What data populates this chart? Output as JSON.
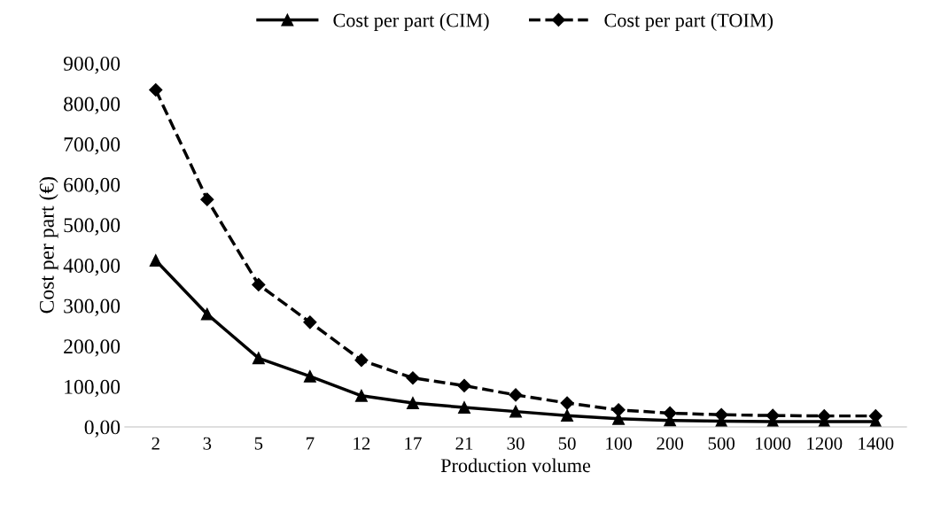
{
  "chart_data": {
    "type": "line",
    "xlabel": "Production volume",
    "ylabel": "Cost per part (€)",
    "categories": [
      "2",
      "3",
      "5",
      "7",
      "12",
      "17",
      "21",
      "30",
      "50",
      "100",
      "200",
      "500",
      "1000",
      "1200",
      "1400"
    ],
    "series": [
      {
        "name": "Cost per part (CIM)",
        "color": "#000000",
        "marker": "triangle",
        "line_style": "solid",
        "values": [
          412,
          279,
          170,
          125,
          77,
          59,
          48,
          38,
          28,
          20,
          16,
          14,
          13,
          13,
          13
        ]
      },
      {
        "name": "Cost per part (TOIM)",
        "color": "#000000",
        "marker": "diamond",
        "line_style": "dashed",
        "values": [
          834,
          563,
          352,
          259,
          165,
          121,
          102,
          79,
          59,
          42,
          34,
          30,
          28,
          27,
          27
        ]
      }
    ],
    "ylim": [
      0,
      900
    ],
    "yticks": [
      {
        "value": 0,
        "label": "0,00"
      },
      {
        "value": 100,
        "label": "100,00"
      },
      {
        "value": 200,
        "label": "200,00"
      },
      {
        "value": 300,
        "label": "300,00"
      },
      {
        "value": 400,
        "label": "400,00"
      },
      {
        "value": 500,
        "label": "500,00"
      },
      {
        "value": 600,
        "label": "600,00"
      },
      {
        "value": 700,
        "label": "700,00"
      },
      {
        "value": 800,
        "label": "800,00"
      },
      {
        "value": 900,
        "label": "900,00"
      }
    ],
    "grid": false,
    "legend": "top"
  }
}
